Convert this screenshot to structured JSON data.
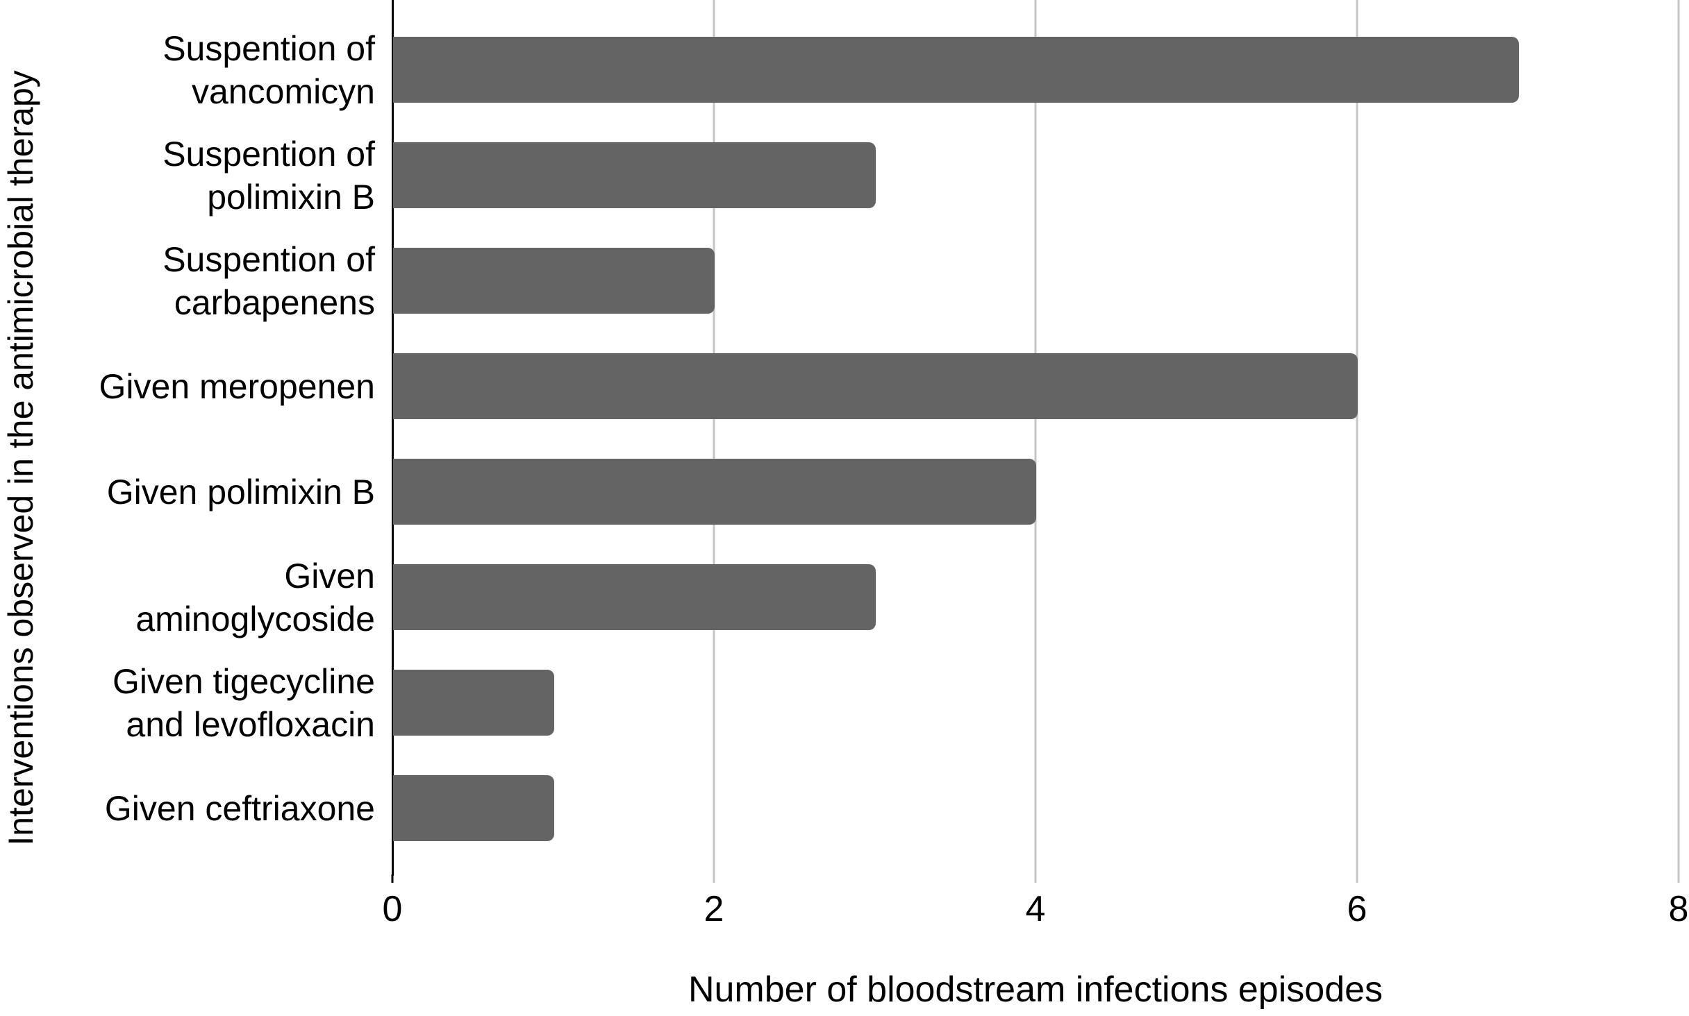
{
  "chart_data": {
    "type": "bar",
    "orientation": "horizontal",
    "title": "",
    "xlabel": "Number of bloodstream infections episodes",
    "ylabel": "Interventions observed in the antimicrobial therapy",
    "categories": [
      "Suspention of\nvancomicyn",
      "Suspention of\npolimixin B",
      "Suspention of\ncarbapenens",
      "Given meropenen",
      "Given polimixin B",
      "Given\naminoglycoside",
      "Given tigecycline\nand levofloxacin",
      "Given ceftriaxone"
    ],
    "values": [
      7,
      3,
      2,
      6,
      4,
      3,
      1,
      1
    ],
    "xlim": [
      0,
      8
    ],
    "xticks": [
      0,
      2,
      4,
      6,
      8
    ],
    "grid": "vertical gridlines at x tick positions",
    "legend": "none"
  },
  "colors": {
    "bar": "#646464",
    "gridline": "#c5c5c5",
    "axis": "#000000",
    "text": "#000000",
    "background": "#ffffff"
  }
}
